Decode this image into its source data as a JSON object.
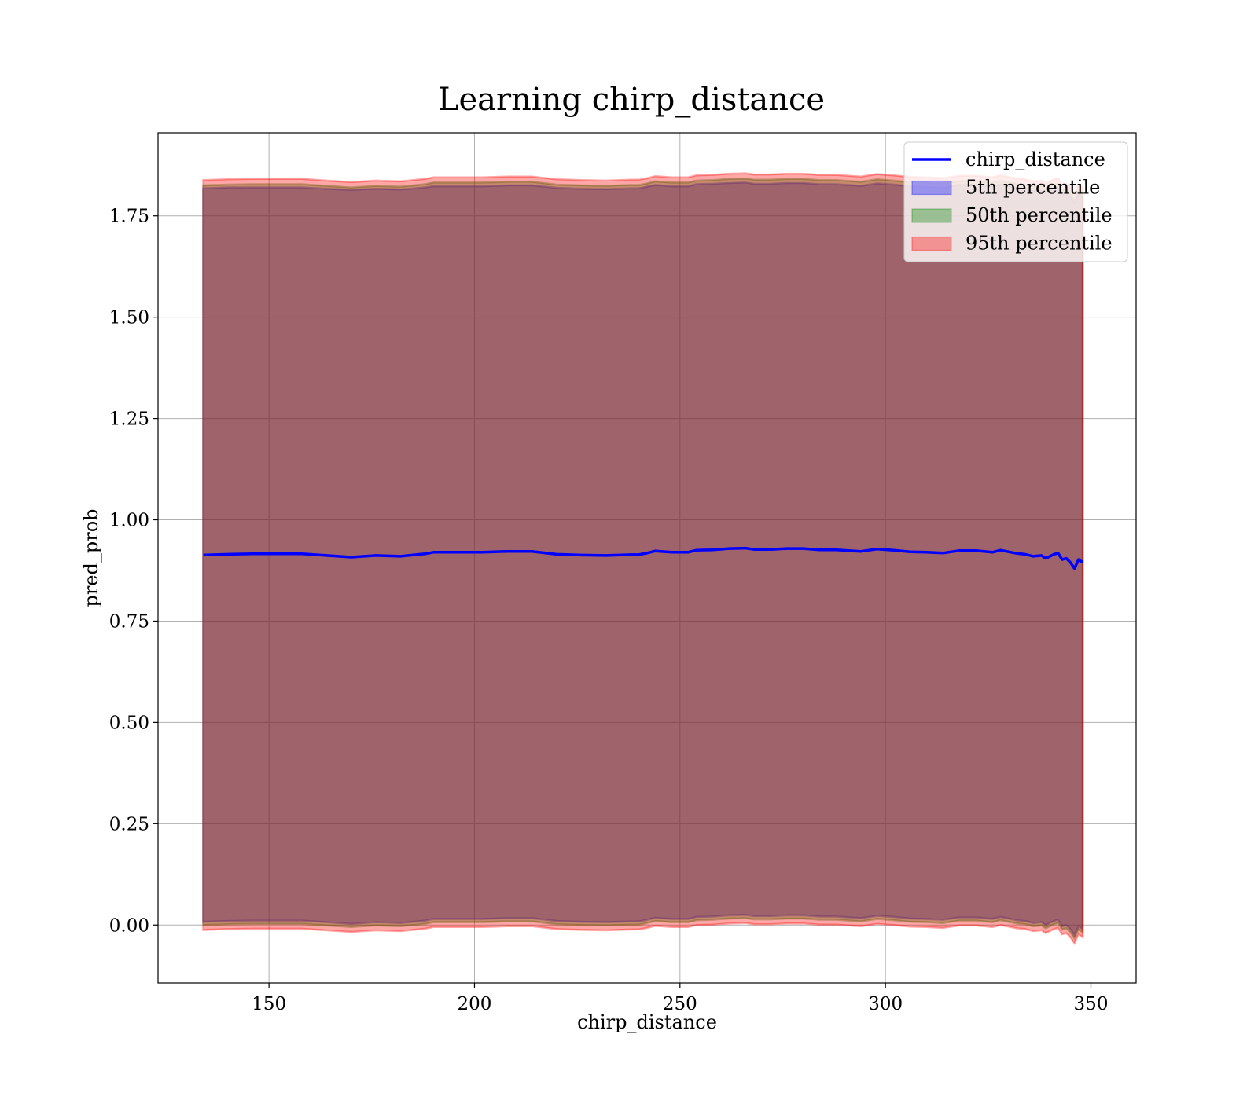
{
  "chart_data": {
    "type": "area",
    "title": "Learning chirp_distance",
    "xlabel": "chirp_distance",
    "ylabel": "pred_prob",
    "xlim": [
      123,
      361
    ],
    "ylim": [
      -0.143,
      1.955
    ],
    "xticks": [
      150,
      200,
      250,
      300,
      350
    ],
    "xtick_labels": [
      "150",
      "200",
      "250",
      "300",
      "350"
    ],
    "yticks": [
      0.0,
      0.25,
      0.5,
      0.75,
      1.0,
      1.25,
      1.5,
      1.75
    ],
    "ytick_labels": [
      "0.00",
      "0.25",
      "0.50",
      "0.75",
      "1.00",
      "1.25",
      "1.50",
      "1.75"
    ],
    "grid": true,
    "legend_position": "top-right",
    "colors": {
      "line": "#0000ff",
      "p5": "#0000ff",
      "p50": "#008000",
      "p95": "#ff0000",
      "grid": "#b0b0b0"
    },
    "x": [
      134,
      140,
      146,
      152,
      158,
      164,
      170,
      176,
      182,
      188,
      190,
      196,
      202,
      208,
      214,
      220,
      226,
      232,
      238,
      240,
      242,
      244,
      248,
      252,
      254,
      258,
      262,
      266,
      268,
      272,
      276,
      280,
      284,
      288,
      294,
      298,
      302,
      306,
      310,
      314,
      318,
      322,
      324,
      326,
      328,
      332,
      334,
      336,
      338,
      339,
      341,
      342,
      343,
      344,
      345,
      346,
      347,
      348
    ],
    "series": [
      {
        "name": "chirp_distance",
        "style": "line",
        "values": [
          0.913,
          0.915,
          0.916,
          0.916,
          0.916,
          0.912,
          0.908,
          0.912,
          0.91,
          0.916,
          0.92,
          0.92,
          0.92,
          0.922,
          0.922,
          0.915,
          0.913,
          0.912,
          0.914,
          0.914,
          0.918,
          0.923,
          0.92,
          0.92,
          0.925,
          0.926,
          0.929,
          0.93,
          0.927,
          0.927,
          0.929,
          0.929,
          0.926,
          0.926,
          0.922,
          0.928,
          0.925,
          0.921,
          0.92,
          0.918,
          0.924,
          0.924,
          0.922,
          0.92,
          0.925,
          0.917,
          0.915,
          0.91,
          0.912,
          0.905,
          0.915,
          0.918,
          0.902,
          0.905,
          0.895,
          0.88,
          0.902,
          0.895
        ]
      },
      {
        "name": "5th percentile",
        "style": "band",
        "upper": [
          1.818,
          1.82,
          1.82,
          1.82,
          1.82,
          1.817,
          1.814,
          1.817,
          1.815,
          1.82,
          1.823,
          1.823,
          1.823,
          1.825,
          1.825,
          1.819,
          1.817,
          1.816,
          1.818,
          1.818,
          1.822,
          1.826,
          1.823,
          1.823,
          1.828,
          1.829,
          1.831,
          1.832,
          1.829,
          1.829,
          1.831,
          1.831,
          1.828,
          1.828,
          1.824,
          1.83,
          1.827,
          1.823,
          1.822,
          1.82,
          1.826,
          1.826,
          1.824,
          1.822,
          1.827,
          1.819,
          1.817,
          1.812,
          1.814,
          1.807,
          1.817,
          1.82,
          1.804,
          1.807,
          1.797,
          1.782,
          1.804,
          1.797
        ],
        "lower": [
          0.008,
          0.01,
          0.011,
          0.011,
          0.011,
          0.007,
          0.003,
          0.007,
          0.005,
          0.011,
          0.015,
          0.015,
          0.015,
          0.017,
          0.017,
          0.01,
          0.008,
          0.007,
          0.009,
          0.009,
          0.013,
          0.018,
          0.015,
          0.015,
          0.02,
          0.021,
          0.024,
          0.025,
          0.022,
          0.022,
          0.024,
          0.024,
          0.021,
          0.021,
          0.017,
          0.023,
          0.02,
          0.016,
          0.015,
          0.013,
          0.019,
          0.019,
          0.017,
          0.015,
          0.02,
          0.012,
          0.01,
          0.005,
          0.007,
          0.0,
          0.01,
          0.013,
          -0.003,
          0.0,
          -0.01,
          -0.025,
          -0.003,
          -0.01
        ]
      },
      {
        "name": "50th percentile",
        "style": "band",
        "upper": [
          1.825,
          1.827,
          1.828,
          1.828,
          1.828,
          1.824,
          1.82,
          1.824,
          1.822,
          1.828,
          1.832,
          1.832,
          1.832,
          1.834,
          1.834,
          1.827,
          1.825,
          1.824,
          1.826,
          1.826,
          1.83,
          1.835,
          1.832,
          1.832,
          1.837,
          1.838,
          1.841,
          1.842,
          1.839,
          1.839,
          1.841,
          1.841,
          1.838,
          1.838,
          1.834,
          1.84,
          1.837,
          1.833,
          1.832,
          1.83,
          1.836,
          1.836,
          1.834,
          1.832,
          1.837,
          1.829,
          1.827,
          1.822,
          1.824,
          1.817,
          1.827,
          1.83,
          1.814,
          1.817,
          1.807,
          1.792,
          1.814,
          1.807
        ],
        "lower": [
          0.0,
          0.002,
          0.003,
          0.003,
          0.003,
          -0.001,
          -0.005,
          -0.001,
          -0.003,
          0.003,
          0.007,
          0.007,
          0.007,
          0.009,
          0.009,
          0.002,
          0.0,
          -0.001,
          0.001,
          0.001,
          0.005,
          0.01,
          0.007,
          0.007,
          0.012,
          0.013,
          0.016,
          0.017,
          0.014,
          0.014,
          0.016,
          0.016,
          0.013,
          0.013,
          0.009,
          0.015,
          0.012,
          0.008,
          0.007,
          0.005,
          0.011,
          0.011,
          0.009,
          0.007,
          0.012,
          0.004,
          0.002,
          -0.003,
          -0.001,
          -0.008,
          0.002,
          0.005,
          -0.011,
          -0.008,
          -0.018,
          -0.033,
          -0.011,
          -0.018
        ]
      },
      {
        "name": "95th percentile",
        "style": "band",
        "upper": [
          1.838,
          1.84,
          1.841,
          1.841,
          1.841,
          1.837,
          1.833,
          1.837,
          1.835,
          1.841,
          1.845,
          1.845,
          1.845,
          1.847,
          1.847,
          1.84,
          1.838,
          1.837,
          1.839,
          1.839,
          1.843,
          1.848,
          1.845,
          1.845,
          1.85,
          1.851,
          1.854,
          1.855,
          1.852,
          1.852,
          1.854,
          1.854,
          1.851,
          1.851,
          1.847,
          1.853,
          1.85,
          1.846,
          1.845,
          1.843,
          1.849,
          1.849,
          1.847,
          1.845,
          1.85,
          1.842,
          1.84,
          1.835,
          1.837,
          1.83,
          1.84,
          1.843,
          1.827,
          1.83,
          1.82,
          1.805,
          1.827,
          1.82
        ],
        "lower": [
          -0.012,
          -0.01,
          -0.009,
          -0.009,
          -0.009,
          -0.013,
          -0.017,
          -0.013,
          -0.015,
          -0.009,
          -0.005,
          -0.005,
          -0.005,
          -0.003,
          -0.003,
          -0.01,
          -0.012,
          -0.013,
          -0.011,
          -0.011,
          -0.007,
          -0.002,
          -0.005,
          -0.005,
          0.0,
          0.001,
          0.004,
          0.005,
          0.002,
          0.002,
          0.004,
          0.004,
          0.001,
          0.001,
          -0.003,
          0.003,
          0.0,
          -0.004,
          -0.005,
          -0.007,
          -0.001,
          -0.001,
          -0.003,
          -0.005,
          0.0,
          -0.008,
          -0.01,
          -0.015,
          -0.013,
          -0.02,
          -0.01,
          -0.007,
          -0.023,
          -0.02,
          -0.03,
          -0.045,
          -0.023,
          -0.03
        ]
      }
    ]
  }
}
